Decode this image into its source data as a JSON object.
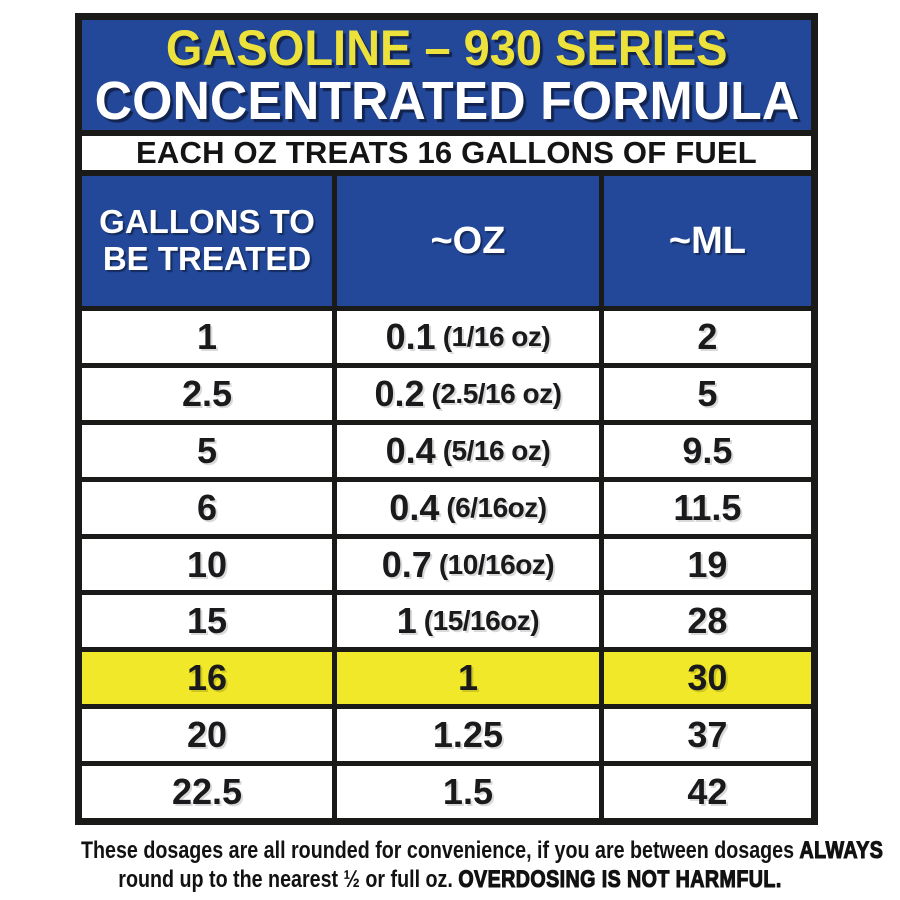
{
  "poster": {
    "title_line1": "GASOLINE – 930 SERIES",
    "title_line2": "CONCENTRATED FORMULA",
    "subtitle": "EACH OZ TREATS 16 GALLONS OF FUEL"
  },
  "table": {
    "header": {
      "col1_line1": "GALLONS TO",
      "col1_line2": "BE TREATED",
      "col2": "~OZ",
      "col3": "~ML"
    },
    "rows": [
      {
        "gallons": "1",
        "oz": "0.1",
        "oz_note": "(1/16 oz)",
        "ml": "2",
        "highlight": false
      },
      {
        "gallons": "2.5",
        "oz": "0.2",
        "oz_note": "(2.5/16 oz)",
        "ml": "5",
        "highlight": false
      },
      {
        "gallons": "5",
        "oz": "0.4",
        "oz_note": "(5/16 oz)",
        "ml": "9.5",
        "highlight": false
      },
      {
        "gallons": "6",
        "oz": "0.4",
        "oz_note": "(6/16oz)",
        "ml": "11.5",
        "highlight": false
      },
      {
        "gallons": "10",
        "oz": "0.7",
        "oz_note": "(10/16oz)",
        "ml": "19",
        "highlight": false
      },
      {
        "gallons": "15",
        "oz": "1",
        "oz_note": "(15/16oz)",
        "ml": "28",
        "highlight": false
      },
      {
        "gallons": "16",
        "oz": "1",
        "oz_note": "",
        "ml": "30",
        "highlight": true
      },
      {
        "gallons": "20",
        "oz": "1.25",
        "oz_note": "",
        "ml": "37",
        "highlight": false
      },
      {
        "gallons": "22.5",
        "oz": "1.5",
        "oz_note": "",
        "ml": "42",
        "highlight": false
      }
    ]
  },
  "footer": {
    "line1_regular": "These dosages are all rounded for convenience, if you are between dosages ",
    "line1_bold": "ALWAYS",
    "line2_regular": "round up to the nearest ½ or full oz. ",
    "line2_bold": "OVERDOSING IS NOT HARMFUL."
  },
  "colors": {
    "blue": "#23489A",
    "title_yellow": "#EDE23B",
    "highlight_yellow": "#F1E829",
    "border_black": "#1A1A18"
  },
  "chart_data": {
    "type": "table",
    "title": "GASOLINE – 930 SERIES CONCENTRATED FORMULA",
    "subtitle": "EACH OZ TREATS 16 GALLONS OF FUEL",
    "columns": [
      "GALLONS TO BE TREATED",
      "~OZ",
      "~ML"
    ],
    "rows": [
      [
        "1",
        "0.1 (1/16 oz)",
        "2"
      ],
      [
        "2.5",
        "0.2 (2.5/16 oz)",
        "5"
      ],
      [
        "5",
        "0.4 (5/16 oz)",
        "9.5"
      ],
      [
        "6",
        "0.4 (6/16oz)",
        "11.5"
      ],
      [
        "10",
        "0.7 (10/16oz)",
        "19"
      ],
      [
        "15",
        "1 (15/16oz)",
        "28"
      ],
      [
        "16",
        "1",
        "30"
      ],
      [
        "20",
        "1.25",
        "37"
      ],
      [
        "22.5",
        "1.5",
        "42"
      ]
    ],
    "highlighted_row_index": 6,
    "note": "These dosages are all rounded for convenience, if you are between dosages ALWAYS round up to the nearest ½ or full oz. OVERDOSING IS NOT HARMFUL."
  }
}
